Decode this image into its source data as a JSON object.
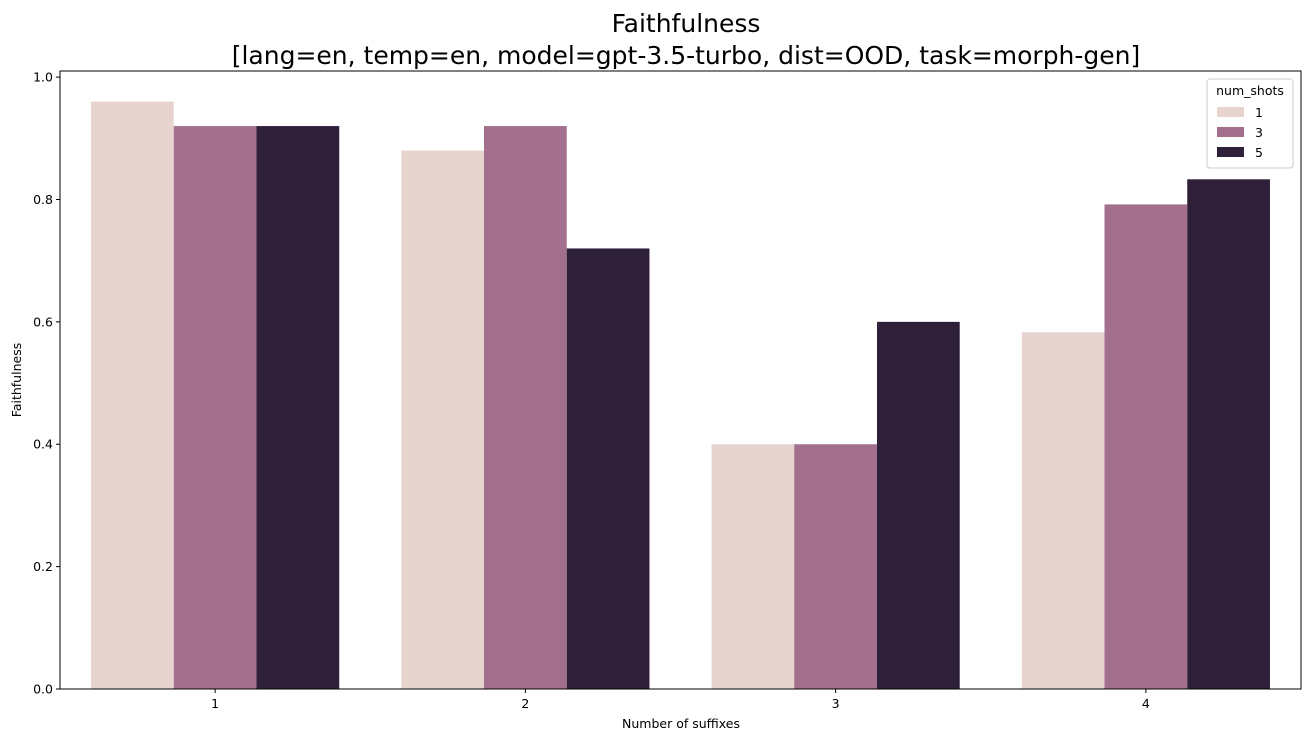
{
  "chart_data": {
    "type": "bar",
    "title": "Faithfulness",
    "subtitle": "[lang=en, temp=en, model=gpt-3.5-turbo, dist=OOD, task=morph-gen]",
    "xlabel": "Number of suffixes",
    "ylabel": "Faithfulness",
    "categories": [
      "1",
      "2",
      "3",
      "4"
    ],
    "ylim": [
      0,
      1.01
    ],
    "yticks": [
      "0.0",
      "0.2",
      "0.4",
      "0.6",
      "0.8",
      "1.0"
    ],
    "legend": {
      "title": "num_shots",
      "position": "top-right"
    },
    "grid": false,
    "series": [
      {
        "name": "1",
        "color": "#e8d4cf",
        "values": [
          0.96,
          0.88,
          0.4,
          0.583
        ]
      },
      {
        "name": "3",
        "color": "#a2708c",
        "values": [
          0.92,
          0.92,
          0.4,
          0.792
        ]
      },
      {
        "name": "5",
        "color": "#2e2039",
        "values": [
          0.92,
          0.72,
          0.6,
          0.833
        ]
      }
    ]
  }
}
